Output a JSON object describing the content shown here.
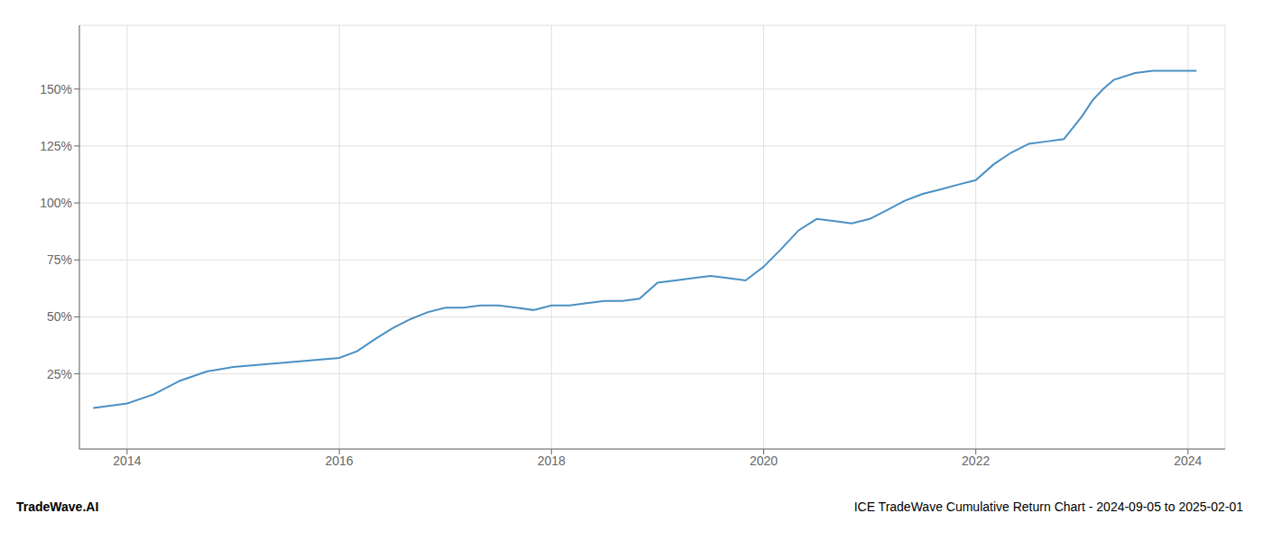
{
  "chart_data": {
    "type": "line",
    "title": "ICE TradeWave Cumulative Return Chart - 2024-09-05 to 2025-02-01",
    "annotations": [
      "TradeWave.AI"
    ],
    "color": "#4a90c4",
    "x": [
      2013.68,
      2014.0,
      2014.25,
      2014.5,
      2014.75,
      2015.0,
      2015.25,
      2015.5,
      2015.75,
      2016.0,
      2016.17,
      2016.33,
      2016.5,
      2016.67,
      2016.83,
      2017.0,
      2017.17,
      2017.33,
      2017.5,
      2017.67,
      2017.83,
      2018.0,
      2018.17,
      2018.33,
      2018.5,
      2018.67,
      2018.83,
      2019.0,
      2019.17,
      2019.33,
      2019.5,
      2019.67,
      2019.83,
      2020.0,
      2020.17,
      2020.33,
      2020.5,
      2020.67,
      2020.83,
      2021.0,
      2021.17,
      2021.33,
      2021.5,
      2021.67,
      2021.83,
      2022.0,
      2022.17,
      2022.33,
      2022.5,
      2022.67,
      2022.83,
      2023.0,
      2023.1,
      2023.2,
      2023.3,
      2023.5,
      2023.67,
      2023.83,
      2024.0,
      2024.08
    ],
    "values": [
      10,
      12,
      16,
      22,
      26,
      28,
      29,
      30,
      31,
      32,
      35,
      40,
      45,
      49,
      52,
      54,
      54,
      55,
      55,
      54,
      53,
      55,
      55,
      56,
      57,
      57,
      58,
      65,
      66,
      67,
      68,
      67,
      66,
      72,
      80,
      88,
      93,
      92,
      91,
      93,
      97,
      101,
      104,
      106,
      108,
      110,
      117,
      122,
      126,
      127,
      128,
      138,
      145,
      150,
      154,
      157,
      158,
      158,
      158,
      158
    ],
    "xlim": [
      2013.55,
      2024.35
    ],
    "xticks": [
      2014,
      2016,
      2018,
      2020,
      2022,
      2024
    ],
    "ylim": [
      -8,
      178
    ],
    "yticks": [
      {
        "value": 25,
        "label": "25%"
      },
      {
        "value": 50,
        "label": "50%"
      },
      {
        "value": 75,
        "label": "75%"
      },
      {
        "value": 100,
        "label": "100%"
      },
      {
        "value": 125,
        "label": "125%"
      },
      {
        "value": 150,
        "label": "150%"
      }
    ],
    "grid": true
  }
}
